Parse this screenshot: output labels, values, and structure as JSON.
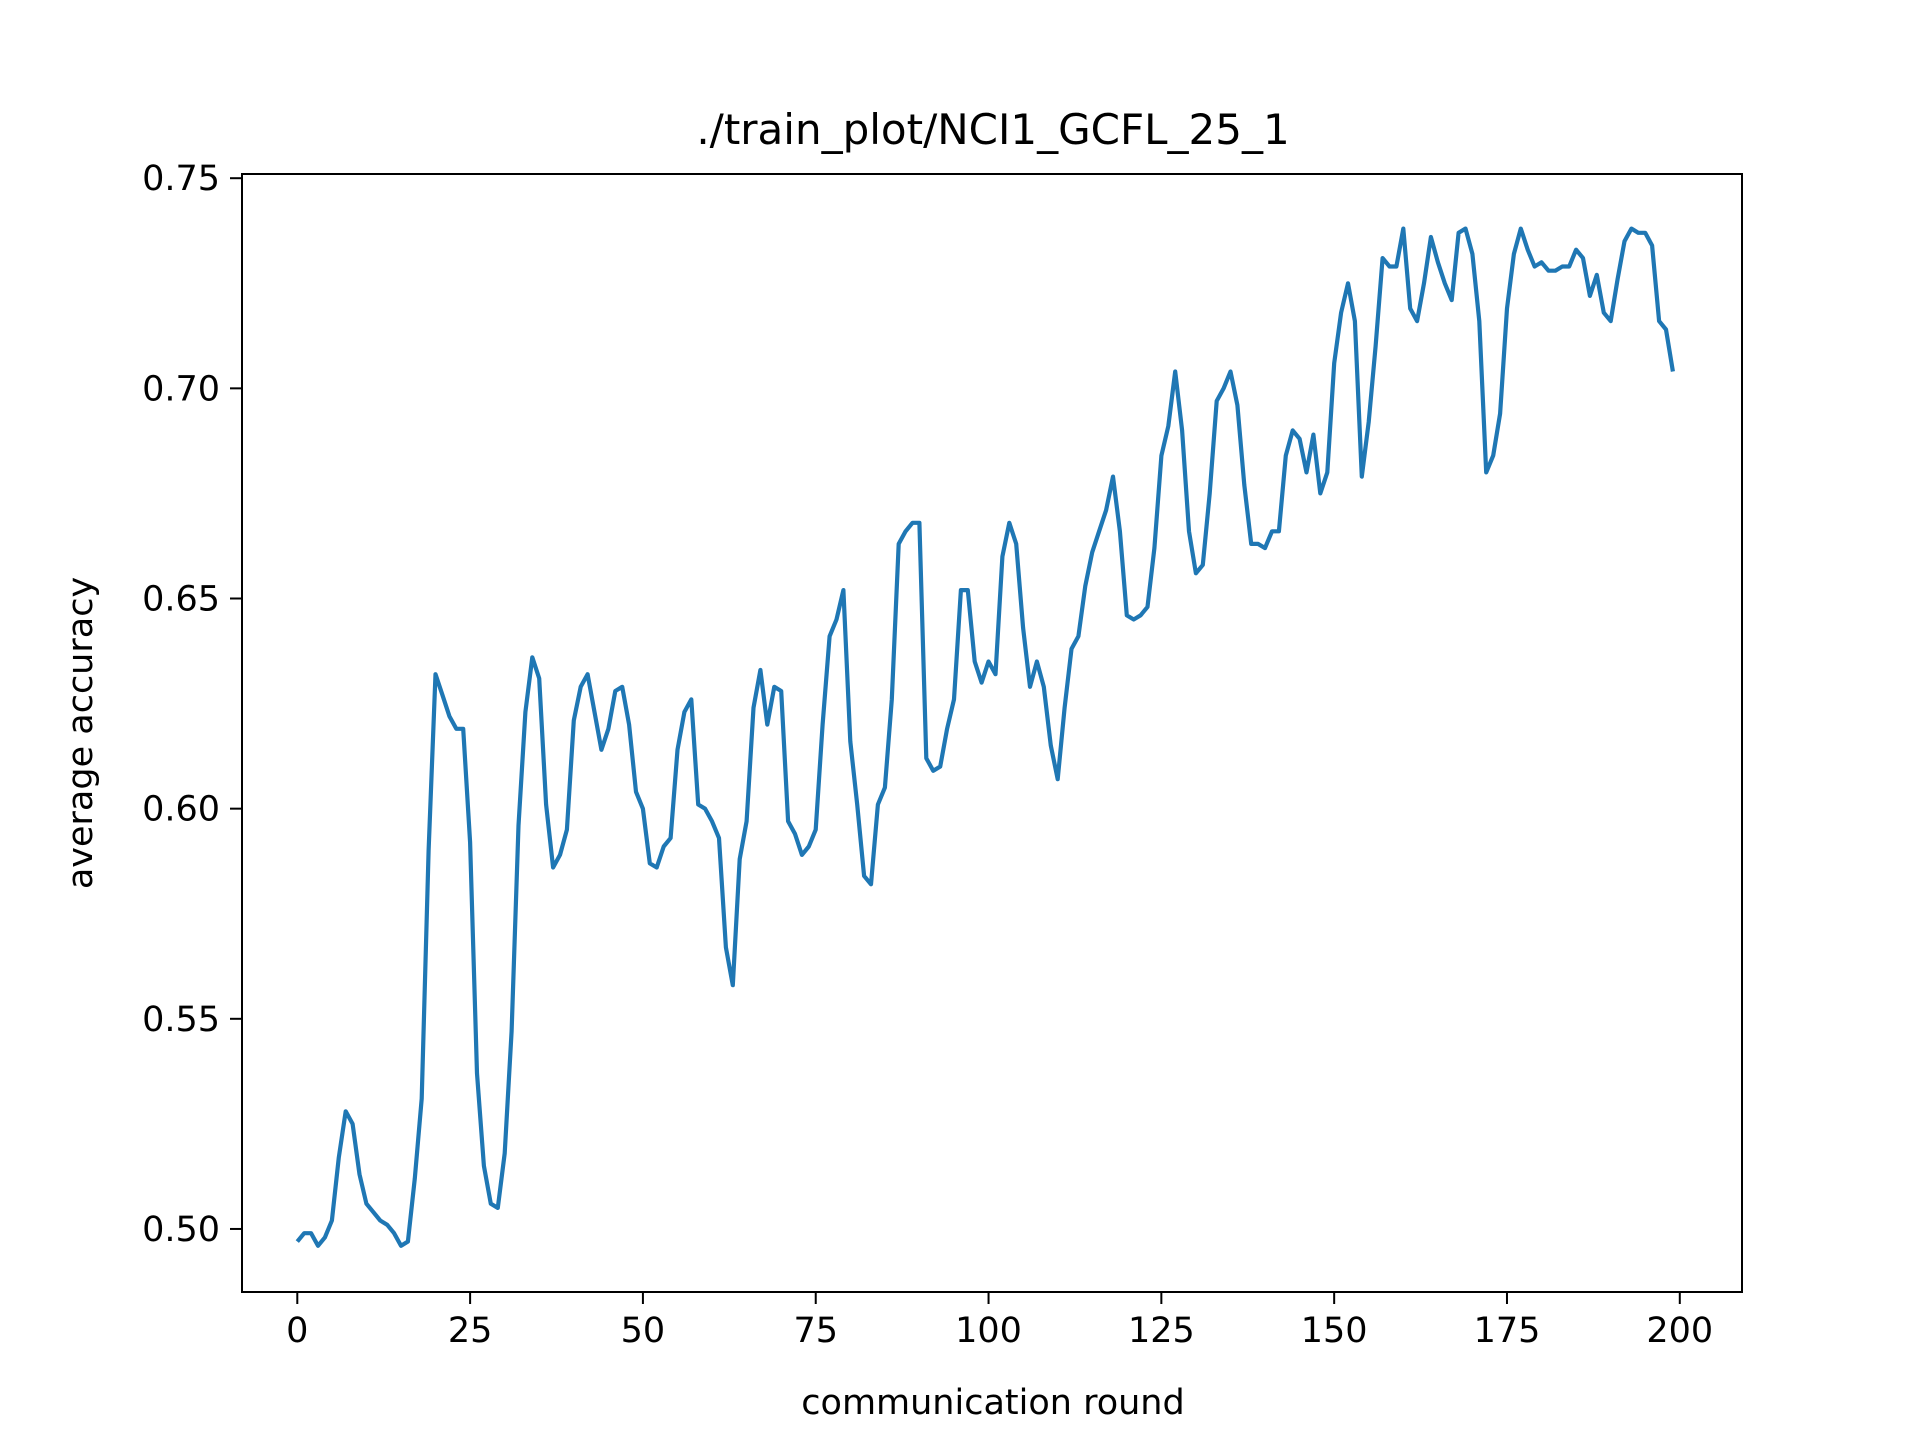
{
  "chart_data": {
    "type": "line",
    "title": "./train_plot/NCI1_GCFL_25_1",
    "xlabel": "communication round",
    "ylabel": "average accuracy",
    "xlim": [
      -8,
      209
    ],
    "ylim": [
      0.485,
      0.751
    ],
    "xticks": [
      0,
      25,
      50,
      75,
      100,
      125,
      150,
      175,
      200
    ],
    "xtick_labels": [
      "0",
      "25",
      "50",
      "75",
      "100",
      "125",
      "150",
      "175",
      "200"
    ],
    "yticks": [
      0.5,
      0.55,
      0.6,
      0.65,
      0.7,
      0.75
    ],
    "ytick_labels": [
      "0.50",
      "0.55",
      "0.60",
      "0.65",
      "0.70",
      "0.75"
    ],
    "grid": false,
    "legend": "none",
    "series": [
      {
        "color": "#1f77b4",
        "x": [
          0,
          1,
          2,
          3,
          4,
          5,
          6,
          7,
          8,
          9,
          10,
          11,
          12,
          13,
          14,
          15,
          16,
          17,
          18,
          19,
          20,
          21,
          22,
          23,
          24,
          25,
          26,
          27,
          28,
          29,
          30,
          31,
          32,
          33,
          34,
          35,
          36,
          37,
          38,
          39,
          40,
          41,
          42,
          43,
          44,
          45,
          46,
          47,
          48,
          49,
          50,
          51,
          52,
          53,
          54,
          55,
          56,
          57,
          58,
          59,
          60,
          61,
          62,
          63,
          64,
          65,
          66,
          67,
          68,
          69,
          70,
          71,
          72,
          73,
          74,
          75,
          76,
          77,
          78,
          79,
          80,
          81,
          82,
          83,
          84,
          85,
          86,
          87,
          88,
          89,
          90,
          91,
          92,
          93,
          94,
          95,
          96,
          97,
          98,
          99,
          100,
          101,
          102,
          103,
          104,
          105,
          106,
          107,
          108,
          109,
          110,
          111,
          112,
          113,
          114,
          115,
          116,
          117,
          118,
          119,
          120,
          121,
          122,
          123,
          124,
          125,
          126,
          127,
          128,
          129,
          130,
          131,
          132,
          133,
          134,
          135,
          136,
          137,
          138,
          139,
          140,
          141,
          142,
          143,
          144,
          145,
          146,
          147,
          148,
          149,
          150,
          151,
          152,
          153,
          154,
          155,
          156,
          157,
          158,
          159,
          160,
          161,
          162,
          163,
          164,
          165,
          166,
          167,
          168,
          169,
          170,
          171,
          172,
          173,
          174,
          175,
          176,
          177,
          178,
          179,
          180,
          181,
          182,
          183,
          184,
          185,
          186,
          187,
          188,
          189,
          190,
          191,
          192,
          193,
          194,
          195,
          196,
          197,
          198,
          199
        ],
        "values": [
          0.497,
          0.499,
          0.499,
          0.496,
          0.498,
          0.502,
          0.517,
          0.528,
          0.525,
          0.513,
          0.506,
          0.504,
          0.502,
          0.501,
          0.499,
          0.496,
          0.497,
          0.512,
          0.531,
          0.59,
          0.632,
          0.627,
          0.622,
          0.619,
          0.619,
          0.592,
          0.537,
          0.515,
          0.506,
          0.505,
          0.518,
          0.547,
          0.596,
          0.623,
          0.636,
          0.631,
          0.601,
          0.586,
          0.589,
          0.595,
          0.621,
          0.629,
          0.632,
          0.623,
          0.614,
          0.619,
          0.628,
          0.629,
          0.62,
          0.604,
          0.6,
          0.587,
          0.586,
          0.591,
          0.593,
          0.614,
          0.623,
          0.626,
          0.601,
          0.6,
          0.597,
          0.593,
          0.567,
          0.558,
          0.588,
          0.597,
          0.624,
          0.633,
          0.62,
          0.629,
          0.628,
          0.597,
          0.594,
          0.589,
          0.591,
          0.595,
          0.62,
          0.641,
          0.645,
          0.652,
          0.616,
          0.601,
          0.584,
          0.582,
          0.601,
          0.605,
          0.626,
          0.663,
          0.666,
          0.668,
          0.668,
          0.612,
          0.609,
          0.61,
          0.619,
          0.626,
          0.652,
          0.652,
          0.635,
          0.63,
          0.635,
          0.632,
          0.66,
          0.668,
          0.663,
          0.643,
          0.629,
          0.635,
          0.629,
          0.615,
          0.607,
          0.624,
          0.638,
          0.641,
          0.653,
          0.661,
          0.666,
          0.671,
          0.679,
          0.666,
          0.646,
          0.645,
          0.646,
          0.648,
          0.662,
          0.684,
          0.691,
          0.704,
          0.69,
          0.666,
          0.656,
          0.658,
          0.675,
          0.697,
          0.7,
          0.704,
          0.696,
          0.677,
          0.663,
          0.663,
          0.662,
          0.666,
          0.666,
          0.684,
          0.69,
          0.688,
          0.68,
          0.689,
          0.675,
          0.68,
          0.706,
          0.718,
          0.725,
          0.716,
          0.679,
          0.692,
          0.71,
          0.731,
          0.729,
          0.729,
          0.738,
          0.719,
          0.716,
          0.725,
          0.736,
          0.73,
          0.725,
          0.721,
          0.737,
          0.738,
          0.732,
          0.716,
          0.68,
          0.684,
          0.694,
          0.719,
          0.732,
          0.738,
          0.733,
          0.729,
          0.73,
          0.728,
          0.728,
          0.729,
          0.729,
          0.733,
          0.731,
          0.722,
          0.727,
          0.718,
          0.716,
          0.726,
          0.735,
          0.738,
          0.737,
          0.737,
          0.734,
          0.716,
          0.714,
          0.704
        ]
      }
    ]
  }
}
